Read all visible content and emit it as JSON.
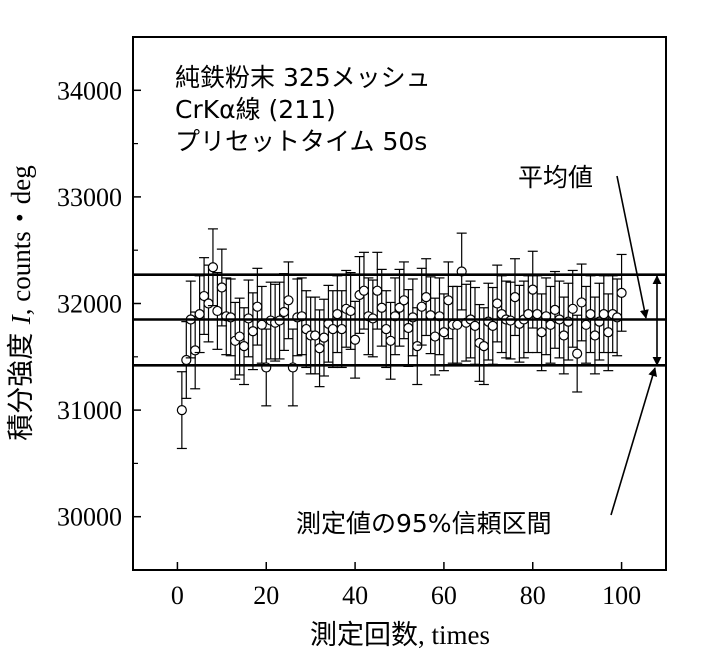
{
  "chart_data": {
    "type": "scatter",
    "title": "",
    "xlabel": "測定回数, times",
    "ylabel_parts": [
      "積分強度 ",
      "I",
      ", counts・deg"
    ],
    "xlim": [
      -10,
      110
    ],
    "ylim": [
      29500,
      34500
    ],
    "x_ticks": [
      0,
      20,
      40,
      60,
      80,
      100
    ],
    "y_ticks": [
      30000,
      31000,
      32000,
      33000,
      34000
    ],
    "annotation_lines": [
      "純鉄粉末 325メッシュ",
      "CrKα線 (211)",
      "プリセットタイム 50s"
    ],
    "reference_lines": {
      "mean": 31850,
      "ci_upper": 32270,
      "ci_lower": 31420
    },
    "callouts": {
      "mean_label": "平均値",
      "ci_label": "測定値の95%信頼区間"
    },
    "error_bar_halfwidth": 360,
    "series": [
      {
        "x": [
          1,
          2,
          3,
          4,
          5,
          6,
          7,
          8,
          9,
          10,
          11,
          12,
          13,
          14,
          15,
          16,
          17,
          18,
          19,
          20,
          21,
          22,
          23,
          24,
          25,
          26,
          27,
          28,
          29,
          30,
          31,
          32,
          33,
          34,
          35,
          36,
          37,
          38,
          39,
          40,
          41,
          42,
          43,
          44,
          45,
          46,
          47,
          48,
          49,
          50,
          51,
          52,
          53,
          54,
          55,
          56,
          57,
          58,
          59,
          60,
          61,
          62,
          63,
          64,
          65,
          66,
          67,
          68,
          69,
          70,
          71,
          72,
          73,
          74,
          75,
          76,
          77,
          78,
          79,
          80,
          81,
          82,
          83,
          84,
          85,
          86,
          87,
          88,
          89,
          90,
          91,
          92,
          93,
          94,
          95,
          96,
          97,
          98,
          99,
          100
        ],
        "y": [
          31000,
          31470,
          31850,
          31560,
          31900,
          32070,
          32000,
          32340,
          31930,
          32150,
          31880,
          31870,
          31650,
          31690,
          31600,
          31860,
          31740,
          31970,
          31800,
          31400,
          31840,
          31820,
          31840,
          31920,
          32030,
          31400,
          31870,
          31880,
          31760,
          31700,
          31700,
          31580,
          31680,
          31810,
          31760,
          31900,
          31760,
          31950,
          31930,
          31660,
          32080,
          32120,
          31880,
          31860,
          32120,
          31960,
          31760,
          31650,
          31880,
          31960,
          32030,
          31770,
          31870,
          31600,
          31970,
          32060,
          31890,
          31690,
          31880,
          31730,
          32030,
          31800,
          31800,
          32300,
          31820,
          31850,
          31790,
          31630,
          31600,
          31830,
          31790,
          32000,
          31900,
          31850,
          31840,
          32060,
          31810,
          31850,
          31900,
          32130,
          31900,
          31730,
          31880,
          31800,
          31940,
          31850,
          31700,
          31830,
          31950,
          31530,
          32010,
          31800,
          31900,
          31700,
          31830,
          31900,
          31730,
          31900,
          31870,
          32100
        ]
      }
    ]
  }
}
